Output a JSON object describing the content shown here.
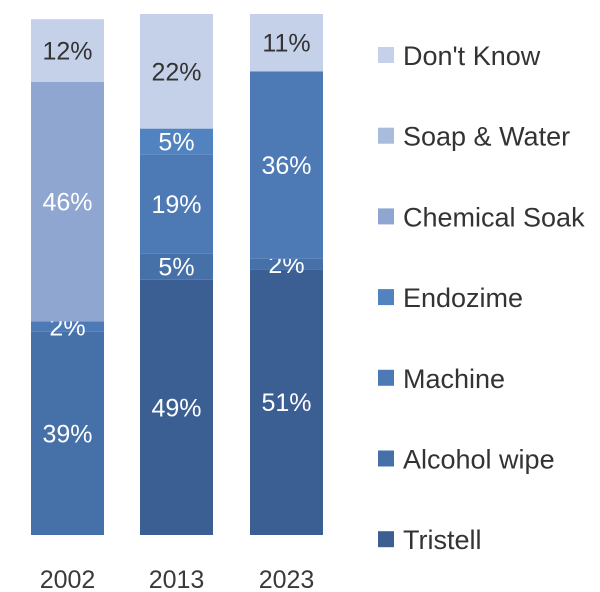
{
  "chart_data": {
    "type": "bar",
    "stacked": true,
    "normalized_to_100": true,
    "categories": [
      "2002",
      "2013",
      "2023"
    ],
    "series": [
      {
        "name": "Tristell",
        "color": "#3b5f92",
        "values": [
          0,
          49,
          51
        ]
      },
      {
        "name": "Alcohol wipe",
        "color": "#4670a8",
        "values": [
          39,
          5,
          2
        ]
      },
      {
        "name": "Machine",
        "color": "#4d79b5",
        "values": [
          2,
          19,
          36
        ]
      },
      {
        "name": "Endozime",
        "color": "#5083c0",
        "values": [
          0,
          5,
          0
        ]
      },
      {
        "name": "Chemical Soak",
        "color": "#8ea6d0",
        "values": [
          46,
          0,
          0
        ]
      },
      {
        "name": "Soap & Water",
        "color": "#a9bcdc",
        "values": [
          0,
          0,
          0
        ]
      },
      {
        "name": "Don't Know",
        "color": "#c5d1e8",
        "values": [
          12,
          22,
          11
        ]
      }
    ],
    "data_labels": {
      "2002": [
        "",
        "39%",
        "2%",
        "",
        "46%",
        "",
        "12%"
      ],
      "2013": [
        "49%",
        "5%",
        "19%",
        "5%",
        "",
        "",
        "22%"
      ],
      "2023": [
        "51%",
        "2%",
        "36%",
        "",
        "",
        "",
        "11%"
      ]
    },
    "legend_order": [
      "Don't Know",
      "Soap & Water",
      "Chemical Soak",
      "Endozime",
      "Machine",
      "Alcohol wipe",
      "Tristell"
    ],
    "legend_position": "right",
    "ylim": [
      0,
      100
    ],
    "grid": false,
    "title": "",
    "xlabel": "",
    "ylabel": ""
  }
}
